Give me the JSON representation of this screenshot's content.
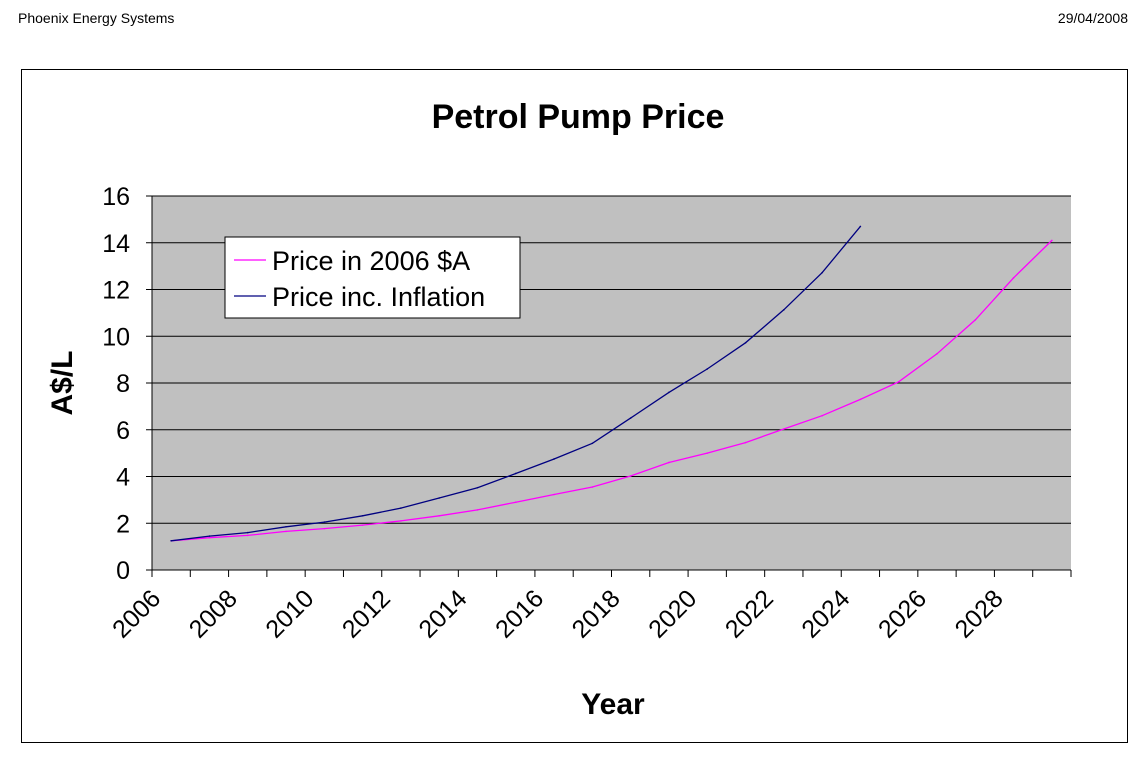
{
  "header": {
    "company": "Phoenix Energy Systems",
    "date": "29/04/2008"
  },
  "colors": {
    "plot_bg": "#c0c0c0",
    "series1": "#ff00ff",
    "series2": "#000080"
  },
  "chart_data": {
    "type": "line",
    "title": "Petrol Pump Price",
    "xlabel": "Year",
    "ylabel": "A$/L",
    "ylim": [
      0,
      16
    ],
    "yticks": [
      "0",
      "2",
      "4",
      "6",
      "8",
      "10",
      "12",
      "14",
      "16"
    ],
    "xlim": [
      2006,
      2030
    ],
    "xtick_labels": [
      "2006",
      "2008",
      "2010",
      "2012",
      "2014",
      "2016",
      "2018",
      "2020",
      "2022",
      "2024",
      "2026",
      "2028"
    ],
    "grid": true,
    "legend_position": "top-left",
    "series": [
      {
        "name": "Price in 2006 $A",
        "color": "#ff00ff",
        "x": [
          2006.5,
          2007.5,
          2008.5,
          2009.5,
          2010.5,
          2011.5,
          2012.5,
          2013.5,
          2014.5,
          2015.5,
          2016.5,
          2017.5,
          2018.5,
          2019.5,
          2020.5,
          2021.5,
          2022.5,
          2023.5,
          2024.5,
          2025.5,
          2026.5,
          2027.5,
          2028.5,
          2029.5
        ],
        "values": [
          1.25,
          1.38,
          1.48,
          1.65,
          1.77,
          1.92,
          2.1,
          2.32,
          2.57,
          2.9,
          3.23,
          3.55,
          4.02,
          4.6,
          5.0,
          5.45,
          6.03,
          6.6,
          7.3,
          8.05,
          9.25,
          10.7,
          12.5,
          14.1
        ]
      },
      {
        "name": "Price inc. Inflation",
        "color": "#000080",
        "x": [
          2006.5,
          2007.5,
          2008.5,
          2009.5,
          2010.5,
          2011.5,
          2012.5,
          2013.5,
          2014.5,
          2015.5,
          2016.5,
          2017.5,
          2018.5,
          2019.5,
          2020.5,
          2021.5,
          2022.5,
          2023.5,
          2024.5
        ],
        "values": [
          1.25,
          1.45,
          1.6,
          1.85,
          2.05,
          2.32,
          2.65,
          3.08,
          3.52,
          4.13,
          4.75,
          5.42,
          6.5,
          7.6,
          8.6,
          9.72,
          11.13,
          12.72,
          14.7
        ]
      }
    ]
  }
}
